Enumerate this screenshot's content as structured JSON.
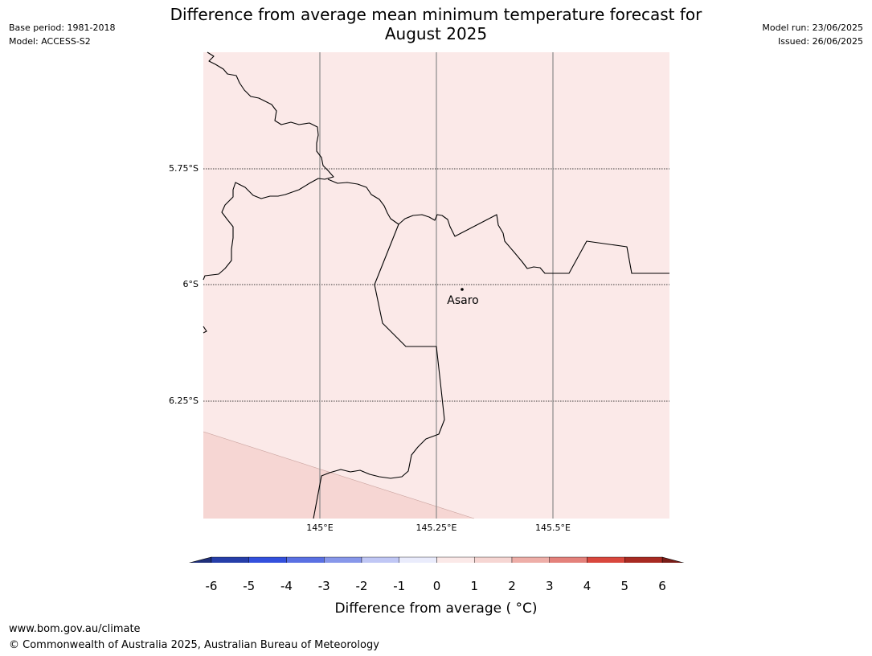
{
  "header": {
    "title_line1": "Difference from average mean minimum temperature forecast for",
    "title_line2": "August 2025",
    "base_period": "Base period: 1981-2018",
    "model": "Model: ACCESS-S2",
    "model_run": "Model run: 23/06/2025",
    "issued": "Issued: 26/06/2025"
  },
  "map": {
    "lat_labels": [
      "5.75°S",
      "6°S",
      "6.25°S"
    ],
    "lon_labels": [
      "145°E",
      "145.25°E",
      "145.5°E"
    ],
    "place": {
      "name": "Asaro"
    },
    "region_colors": {
      "band_0_1": "#fbe9e8",
      "band_1_2": "#f6d6d3"
    }
  },
  "colorbar": {
    "ticks": [
      "-6",
      "-5",
      "-4",
      "-3",
      "-2",
      "-1",
      "0",
      "1",
      "2",
      "3",
      "4",
      "5",
      "6"
    ],
    "colors": [
      "#263ea9",
      "#3350dd",
      "#5a70e3",
      "#8797ea",
      "#c0c7f5",
      "#eaecfc",
      "#fbe9e8",
      "#f6d6d3",
      "#eeaea8",
      "#e4817b",
      "#d9473d",
      "#a82a22"
    ],
    "low_extend_color": "#1f2f7a",
    "high_extend_color": "#7a1d18",
    "label": "Difference from average ( °C)"
  },
  "footer": {
    "url": "www.bom.gov.au/climate",
    "copyright": "© Commonwealth of Australia 2025, Australian Bureau of Meteorology"
  }
}
